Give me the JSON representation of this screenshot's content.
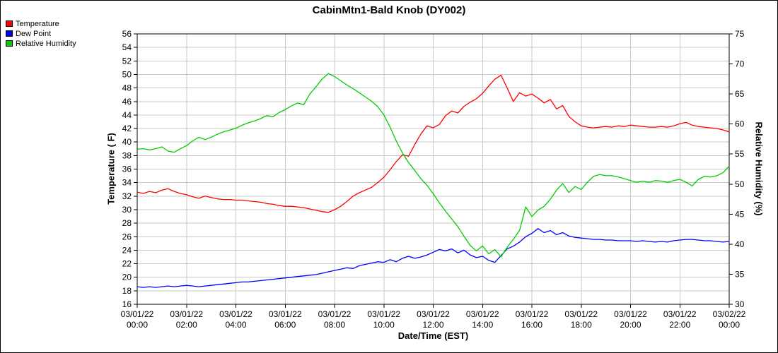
{
  "chart_data": {
    "type": "line",
    "title": "CabinMtn1-Bald Knob (DY002)",
    "xlabel": "Date/Time (EST)",
    "ylabel_left": "Temperature ( F)",
    "ylabel_right": "Relative Humidity (%)",
    "grid": true,
    "grid_color": "#c8c8c8",
    "legend_position": "top-left",
    "x_range_hours": [
      0,
      24
    ],
    "x_step_hours": 0.25,
    "y_left": {
      "min": 16,
      "max": 56,
      "tick_step": 2
    },
    "y_right": {
      "min": 30,
      "max": 75,
      "tick_step": 5
    },
    "x_ticks": [
      {
        "hour": 0,
        "date": "03/01/22",
        "time": "00:00"
      },
      {
        "hour": 2,
        "date": "03/01/22",
        "time": "02:00"
      },
      {
        "hour": 4,
        "date": "03/01/22",
        "time": "04:00"
      },
      {
        "hour": 6,
        "date": "03/01/22",
        "time": "06:00"
      },
      {
        "hour": 8,
        "date": "03/01/22",
        "time": "08:00"
      },
      {
        "hour": 10,
        "date": "03/01/22",
        "time": "10:00"
      },
      {
        "hour": 12,
        "date": "03/01/22",
        "time": "12:00"
      },
      {
        "hour": 14,
        "date": "03/01/22",
        "time": "14:00"
      },
      {
        "hour": 16,
        "date": "03/01/22",
        "time": "16:00"
      },
      {
        "hour": 18,
        "date": "03/01/22",
        "time": "18:00"
      },
      {
        "hour": 20,
        "date": "03/01/22",
        "time": "20:00"
      },
      {
        "hour": 22,
        "date": "03/01/22",
        "time": "22:00"
      },
      {
        "hour": 24,
        "date": "03/02/22",
        "time": "00:00"
      }
    ],
    "series": [
      {
        "name": "Temperature",
        "color": "#ff0000",
        "axis": "left",
        "values": [
          32.6,
          32.4,
          32.7,
          32.5,
          32.9,
          33.1,
          32.7,
          32.4,
          32.2,
          31.9,
          31.7,
          32.0,
          31.8,
          31.6,
          31.5,
          31.5,
          31.4,
          31.4,
          31.3,
          31.2,
          31.1,
          30.9,
          30.8,
          30.6,
          30.5,
          30.5,
          30.4,
          30.3,
          30.1,
          29.9,
          29.7,
          29.6,
          30.0,
          30.5,
          31.2,
          32.0,
          32.5,
          32.9,
          33.3,
          34.0,
          34.8,
          35.9,
          37.1,
          38.1,
          37.9,
          39.6,
          41.2,
          42.4,
          42.1,
          42.6,
          43.9,
          44.6,
          44.3,
          45.3,
          45.9,
          46.4,
          47.2,
          48.3,
          49.3,
          49.9,
          48.0,
          46.0,
          47.3,
          46.8,
          47.1,
          46.5,
          45.8,
          46.3,
          44.9,
          45.4,
          43.8,
          43.0,
          42.4,
          42.2,
          42.1,
          42.2,
          42.3,
          42.2,
          42.4,
          42.3,
          42.5,
          42.4,
          42.3,
          42.2,
          42.2,
          42.3,
          42.2,
          42.4,
          42.7,
          42.9,
          42.5,
          42.3,
          42.2,
          42.1,
          42.0,
          41.8,
          41.5
        ]
      },
      {
        "name": "Dew Point",
        "color": "#0000ff",
        "axis": "left",
        "values": [
          18.6,
          18.5,
          18.6,
          18.5,
          18.6,
          18.7,
          18.6,
          18.7,
          18.8,
          18.7,
          18.6,
          18.7,
          18.8,
          18.9,
          19.0,
          19.1,
          19.2,
          19.3,
          19.3,
          19.4,
          19.5,
          19.6,
          19.7,
          19.8,
          19.9,
          20.0,
          20.1,
          20.2,
          20.3,
          20.4,
          20.6,
          20.8,
          21.0,
          21.2,
          21.4,
          21.3,
          21.7,
          21.9,
          22.1,
          22.3,
          22.2,
          22.6,
          22.3,
          22.8,
          23.1,
          22.8,
          23.0,
          23.3,
          23.7,
          24.1,
          23.9,
          24.2,
          23.6,
          24.0,
          23.3,
          22.9,
          23.1,
          22.5,
          22.2,
          23.2,
          24.2,
          24.6,
          25.2,
          26.0,
          26.5,
          27.2,
          26.6,
          26.9,
          26.3,
          26.6,
          26.1,
          25.9,
          25.8,
          25.7,
          25.6,
          25.6,
          25.5,
          25.5,
          25.4,
          25.4,
          25.4,
          25.3,
          25.4,
          25.3,
          25.2,
          25.3,
          25.2,
          25.4,
          25.5,
          25.6,
          25.6,
          25.5,
          25.4,
          25.4,
          25.3,
          25.2,
          25.3
        ]
      },
      {
        "name": "Relative Humidity",
        "color": "#00cc00",
        "axis": "right",
        "values": [
          55.8,
          55.9,
          55.7,
          55.9,
          56.2,
          55.5,
          55.3,
          55.9,
          56.4,
          57.2,
          57.8,
          57.4,
          57.8,
          58.3,
          58.7,
          59.0,
          59.3,
          59.8,
          60.2,
          60.5,
          60.9,
          61.4,
          61.2,
          61.9,
          62.4,
          63.0,
          63.5,
          63.2,
          65.0,
          66.2,
          67.5,
          68.4,
          67.9,
          67.2,
          66.5,
          65.9,
          65.2,
          64.5,
          63.8,
          62.9,
          61.5,
          59.5,
          57.2,
          55.2,
          53.6,
          52.3,
          50.9,
          49.8,
          48.4,
          46.9,
          45.5,
          44.2,
          42.9,
          41.3,
          39.8,
          38.9,
          39.7,
          38.4,
          39.1,
          37.9,
          39.5,
          40.8,
          42.3,
          46.2,
          44.6,
          45.7,
          46.3,
          47.5,
          49.0,
          50.1,
          48.6,
          49.6,
          49.1,
          50.3,
          51.3,
          51.6,
          51.4,
          51.4,
          51.2,
          50.9,
          50.6,
          50.3,
          50.5,
          50.3,
          50.6,
          50.5,
          50.3,
          50.6,
          50.8,
          50.3,
          49.7,
          50.8,
          51.3,
          51.2,
          51.4,
          51.9,
          53.0
        ]
      }
    ]
  }
}
